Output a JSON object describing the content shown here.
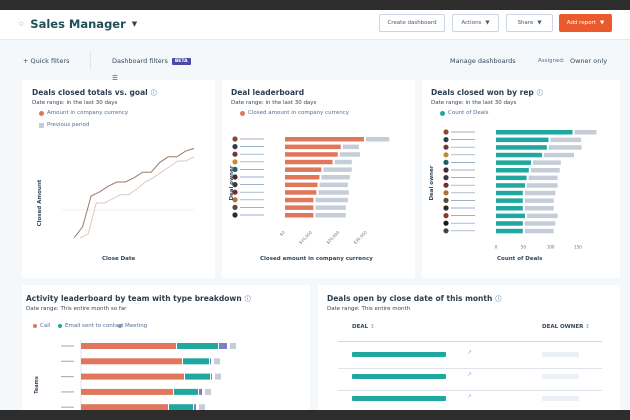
{
  "header": {
    "title": "Sales Manager",
    "buttons": {
      "create": "Create dashboard",
      "actions": "Actions",
      "share": "Share",
      "add_report": "Add report"
    }
  },
  "filters": {
    "quick": "+ Quick filters",
    "dashboard": "Dashboard filters",
    "beta": "BETA",
    "manage": "Manage dashboards",
    "assigned_label": "Assigned:",
    "assigned_value": "Owner only"
  },
  "colors": {
    "orange": "#e0775a",
    "teal": "#1fa7a0",
    "gray": "#c5ced8",
    "purple": "#7b7fc9",
    "accent": "#ea5a2c"
  },
  "chart_data": [
    {
      "type": "line",
      "title": "Deals closed totals vs. goal",
      "subtitle": "Date range: in the last 30 days",
      "xlabel": "Close Date",
      "ylabel": "Closed Amount",
      "series": [
        {
          "name": "Amount in company currency",
          "color": "#9a7a6a",
          "values": [
            0,
            8,
            30,
            33,
            37,
            40,
            40,
            43,
            47,
            47,
            54,
            58,
            58,
            62,
            64
          ]
        },
        {
          "name": "Previous period",
          "color": "#d9ccc4",
          "values": [
            0,
            3,
            25,
            25,
            28,
            31,
            31,
            35,
            40,
            43,
            47,
            51,
            55,
            55,
            58
          ]
        }
      ],
      "goal": 20,
      "grid": false
    },
    {
      "type": "bar",
      "orientation": "horizontal",
      "title": "Deal leaderboard",
      "subtitle": "Date range: in the last 30 days",
      "xlabel": "Closed amount in company currency",
      "ylabel": "Deal owner",
      "legend": [
        "Closed amount in company currency"
      ],
      "xticks": [
        "$0",
        "$10,000",
        "$20,000",
        "$30,000"
      ],
      "xlim": [
        0,
        30000
      ],
      "series": [
        {
          "name": "Closed amount in company currency",
          "values": [
            28900,
            20400,
            19300,
            17400,
            13300,
            12600,
            11900,
            11500,
            10400,
            10400,
            10400
          ]
        },
        {
          "values": [
            8500,
            5900,
            7400,
            6300,
            10400,
            10400,
            10400,
            11100,
            11900,
            11100,
            11100
          ]
        }
      ]
    },
    {
      "type": "bar",
      "orientation": "horizontal",
      "title": "Deals closed won by rep",
      "subtitle": "Date range: in the last 30 days",
      "xlabel": "Count of Deals",
      "ylabel": "Deal owner",
      "legend": [
        "Count of Deals"
      ],
      "xticks": [
        "0",
        "50",
        "100",
        "150"
      ],
      "xlim": [
        0,
        150
      ],
      "series": [
        {
          "name": "Count of Deals",
          "values": [
            140,
            96,
            93,
            84,
            64,
            60,
            56,
            53,
            49,
            49,
            49,
            53,
            49,
            49
          ]
        },
        {
          "values": [
            40,
            56,
            60,
            55,
            51,
            53,
            53,
            56,
            56,
            53,
            53,
            56,
            56,
            53
          ]
        }
      ]
    },
    {
      "type": "bar",
      "orientation": "horizontal",
      "stacked": true,
      "title": "Activity leaderboard by team with type breakdown",
      "subtitle": "Date range: This entire month so far",
      "ylabel": "Teams",
      "series": [
        {
          "name": "Call",
          "values": [
            95,
            101,
            103,
            92,
            87
          ]
        },
        {
          "name": "Email sent to contact",
          "values": [
            41,
            26,
            25,
            24,
            24
          ]
        },
        {
          "name": "Meeting",
          "values": [
            8,
            1,
            1,
            3,
            2
          ]
        },
        {
          "values": [
            6,
            6,
            6,
            6,
            6
          ]
        }
      ]
    }
  ],
  "table": {
    "title": "Deals open by close date of this month",
    "subtitle": "Date range: This entire month",
    "columns": [
      "DEAL",
      "DEAL OWNER"
    ]
  }
}
